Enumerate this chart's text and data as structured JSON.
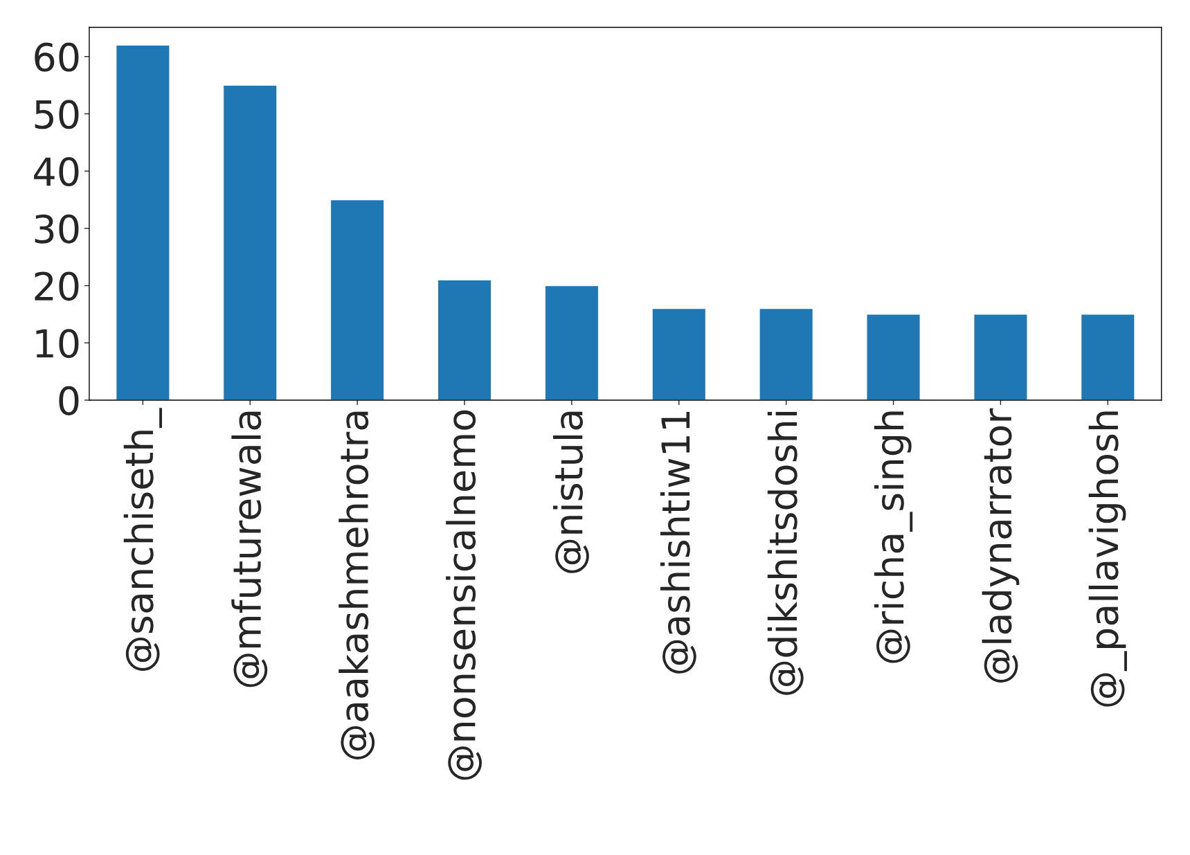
{
  "chart_data": {
    "type": "bar",
    "categories": [
      "@sanchiseth_",
      "@mfuturewala",
      "@aakashmehrotra",
      "@nonsensicalnemo",
      "@nistula",
      "@ashishtiw11",
      "@dikshitsdoshi",
      "@richa_singh",
      "@ladynarrator",
      "@_pallavighosh"
    ],
    "values": [
      62,
      55,
      35,
      21,
      20,
      16,
      16,
      15,
      15,
      15
    ],
    "color": "#1f77b4",
    "ylim": [
      0,
      65.1
    ],
    "yticks": [
      0,
      10,
      20,
      30,
      40,
      50,
      60
    ],
    "grid": false,
    "legend": false
  }
}
